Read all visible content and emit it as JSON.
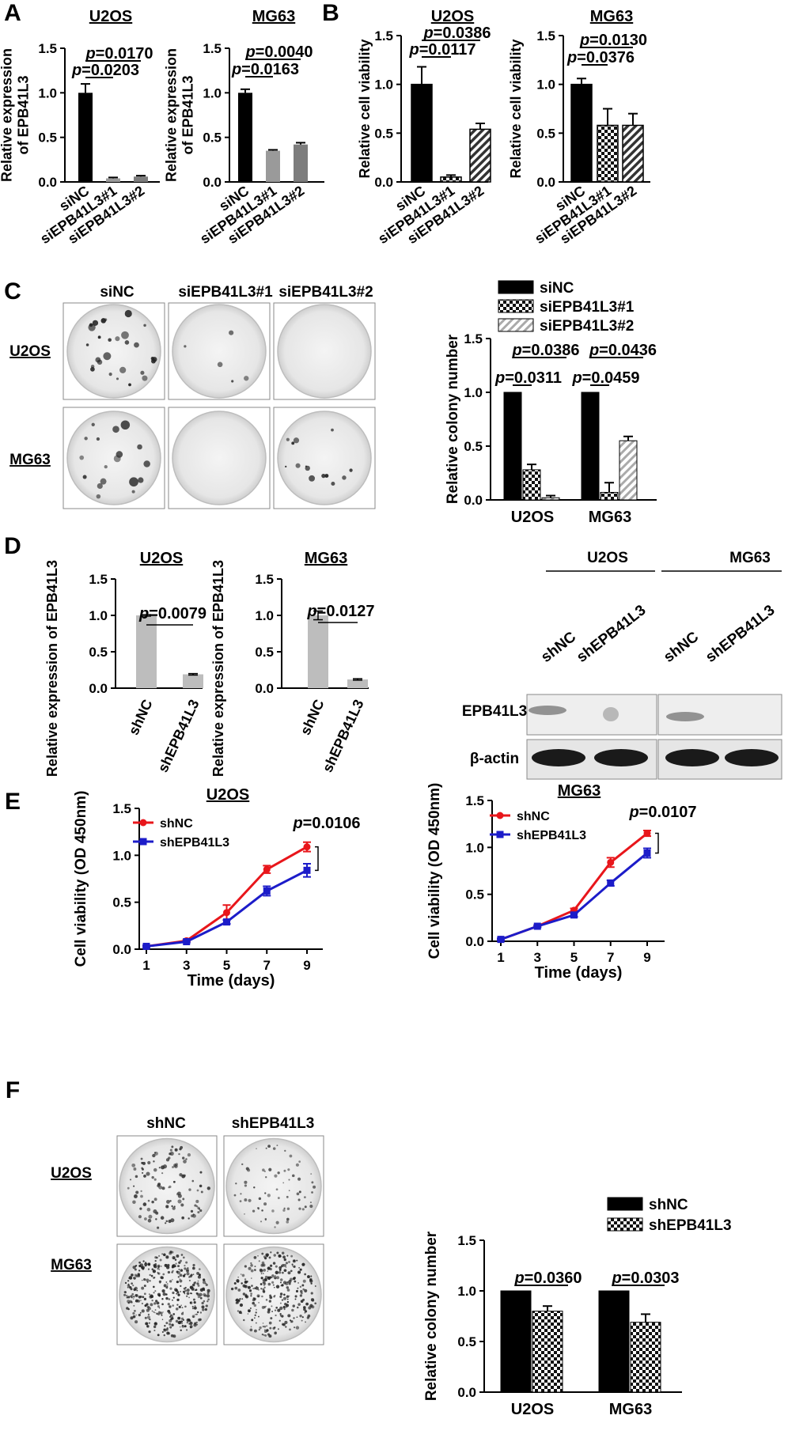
{
  "panels": {
    "A": "A",
    "B": "B",
    "C": "C",
    "D": "D",
    "E": "E",
    "F": "F"
  },
  "colors": {
    "black": "#000000",
    "gray": "#9a9a9a",
    "dark_gray": "#7a7a7a",
    "light_bar": "#bdbdbd",
    "red": "#e8161b",
    "blue": "#1c1cc9"
  },
  "chart_data": [
    {
      "id": "A1",
      "type": "bar",
      "title": "U2OS",
      "ylabel": "Relative expression\nof EPB41L3",
      "categories": [
        "siNC",
        "siEPB41L3#1",
        "siEPB41L3#2"
      ],
      "values": [
        1.0,
        0.04,
        0.06
      ],
      "errors": [
        0.1,
        0.01,
        0.01
      ],
      "ylim": [
        0,
        1.5
      ],
      "yticks": [
        "0.0",
        "0.5",
        "1.0",
        "1.5"
      ],
      "pvalues": [
        "p=0.0170",
        "p=0.0203"
      ]
    },
    {
      "id": "A2",
      "type": "bar",
      "title": "MG63",
      "ylabel": "Relative expression\nof EPB41L3",
      "categories": [
        "siNC",
        "siEPB41L3#1",
        "siEPB41L3#2"
      ],
      "values": [
        1.0,
        0.35,
        0.42
      ],
      "errors": [
        0.04,
        0.01,
        0.02
      ],
      "ylim": [
        0,
        1.5
      ],
      "yticks": [
        "0.0",
        "0.5",
        "1.0",
        "1.5"
      ],
      "pvalues": [
        "p=0.0040",
        "p=0.0163"
      ]
    },
    {
      "id": "B1",
      "type": "bar",
      "title": "U2OS",
      "ylabel": "Relative cell viability",
      "categories": [
        "siNC",
        "siEPB41L3#1",
        "siEPB41L3#2"
      ],
      "values": [
        1.0,
        0.05,
        0.54
      ],
      "errors": [
        0.18,
        0.02,
        0.06
      ],
      "ylim": [
        0,
        1.5
      ],
      "yticks": [
        "0.0",
        "0.5",
        "1.0",
        "1.5"
      ],
      "pvalues": [
        "p=0.0386",
        "p=0.0117"
      ]
    },
    {
      "id": "B2",
      "type": "bar",
      "title": "MG63",
      "ylabel": "Relative cell viability",
      "categories": [
        "siNC",
        "siEPB41L3#1",
        "siEPB41L3#2"
      ],
      "values": [
        1.0,
        0.58,
        0.58
      ],
      "errors": [
        0.06,
        0.17,
        0.12
      ],
      "ylim": [
        0,
        1.5
      ],
      "yticks": [
        "0.0",
        "0.5",
        "1.0",
        "1.5"
      ],
      "pvalues": [
        "p=0.0130",
        "p=0.0376"
      ]
    },
    {
      "id": "C",
      "type": "bar",
      "ylabel": "Relative colony number",
      "categories": [
        "U2OS",
        "MG63"
      ],
      "series": [
        {
          "name": "siNC",
          "values": [
            1.0,
            1.0
          ],
          "errors": [
            0,
            0
          ]
        },
        {
          "name": "siEPB41L3#1",
          "values": [
            0.28,
            0.07
          ],
          "errors": [
            0.05,
            0.09
          ]
        },
        {
          "name": "siEPB41L3#2",
          "values": [
            0.02,
            0.55
          ],
          "errors": [
            0.02,
            0.04
          ]
        }
      ],
      "ylim": [
        0,
        1.5
      ],
      "yticks": [
        "0.0",
        "0.5",
        "1.0",
        "1.5"
      ],
      "pvalues": [
        "p=0.0386",
        "p=0.0311",
        "p=0.0436",
        "p=0.0459"
      ],
      "legend": "top"
    },
    {
      "id": "D1",
      "type": "bar",
      "title": "U2OS",
      "ylabel": "Relative expression of EPB41L3",
      "categories": [
        "shNC",
        "shEPB41L3"
      ],
      "values": [
        1.0,
        0.19
      ],
      "errors": [
        0.01,
        0.01
      ],
      "ylim": [
        0,
        1.5
      ],
      "yticks": [
        "0.0",
        "0.5",
        "1.0",
        "1.5"
      ],
      "pvalues": [
        "p=0.0079"
      ]
    },
    {
      "id": "D2",
      "type": "bar",
      "title": "MG63",
      "ylabel": "Relative expression of EPB41L3",
      "categories": [
        "shNC",
        "shEPB41L3"
      ],
      "values": [
        1.0,
        0.12
      ],
      "errors": [
        0.06,
        0.01
      ],
      "ylim": [
        0,
        1.5
      ],
      "yticks": [
        "0.0",
        "0.5",
        "1.0",
        "1.5"
      ],
      "pvalues": [
        "p=0.0127"
      ]
    },
    {
      "id": "E1",
      "type": "line",
      "title": "U2OS",
      "xlabel": "Time (days)",
      "ylabel": "Cell viability (OD 450nm)",
      "x": [
        1,
        3,
        5,
        7,
        9
      ],
      "xticks": [
        "1",
        "3",
        "5",
        "7",
        "9"
      ],
      "series": [
        {
          "name": "shNC",
          "values": [
            0.03,
            0.09,
            0.39,
            0.85,
            1.09
          ],
          "errors": [
            0.01,
            0.01,
            0.08,
            0.04,
            0.05
          ]
        },
        {
          "name": "shEPB41L3",
          "values": [
            0.03,
            0.08,
            0.29,
            0.62,
            0.84
          ],
          "errors": [
            0.01,
            0.01,
            0.02,
            0.05,
            0.07
          ]
        }
      ],
      "ylim": [
        0,
        1.5
      ],
      "yticks": [
        "0.0",
        "0.5",
        "1.0",
        "1.5"
      ],
      "pvalue": "p=0.0106",
      "legend": "top-left"
    },
    {
      "id": "E2",
      "type": "line",
      "title": "MG63",
      "xlabel": "Time (days)",
      "ylabel": "Cell viability (OD 450nm)",
      "x": [
        1,
        3,
        5,
        7,
        9
      ],
      "xticks": [
        "1",
        "3",
        "5",
        "7",
        "9"
      ],
      "series": [
        {
          "name": "shNC",
          "values": [
            0.02,
            0.16,
            0.33,
            0.84,
            1.15
          ],
          "errors": [
            0.01,
            0.01,
            0.02,
            0.05,
            0.03
          ]
        },
        {
          "name": "shEPB41L3",
          "values": [
            0.02,
            0.16,
            0.28,
            0.62,
            0.94
          ],
          "errors": [
            0.01,
            0.01,
            0.02,
            0.03,
            0.05
          ]
        }
      ],
      "ylim": [
        0,
        1.5
      ],
      "yticks": [
        "0.0",
        "0.5",
        "1.0",
        "1.5"
      ],
      "pvalue": "p=0.0107",
      "legend": "top-left"
    },
    {
      "id": "F",
      "type": "bar",
      "ylabel": "Relative colony number",
      "categories": [
        "U2OS",
        "MG63"
      ],
      "series": [
        {
          "name": "shNC",
          "values": [
            1.0,
            1.0
          ],
          "errors": [
            0,
            0
          ]
        },
        {
          "name": "shEPB41L3",
          "values": [
            0.8,
            0.69
          ],
          "errors": [
            0.05,
            0.08
          ]
        }
      ],
      "ylim": [
        0,
        1.5
      ],
      "yticks": [
        "0.0",
        "0.5",
        "1.0",
        "1.5"
      ],
      "pvalues": [
        "p=0.0360",
        "p=0.0303"
      ],
      "legend": "top"
    }
  ],
  "colony_c": {
    "columns": [
      "siNC",
      "siEPB41L3#1",
      "siEPB41L3#2"
    ],
    "rows": [
      "U2OS",
      "MG63"
    ]
  },
  "colony_f": {
    "columns": [
      "shNC",
      "shEPB41L3"
    ],
    "rows": [
      "U2OS",
      "MG63"
    ]
  },
  "western_blot": {
    "groups": [
      "U2OS",
      "MG63"
    ],
    "lanes": [
      "shNC",
      "shEPB41L3",
      "shNC",
      "shEPB41L3"
    ],
    "proteins": [
      "EPB41L3",
      "β-actin"
    ]
  }
}
